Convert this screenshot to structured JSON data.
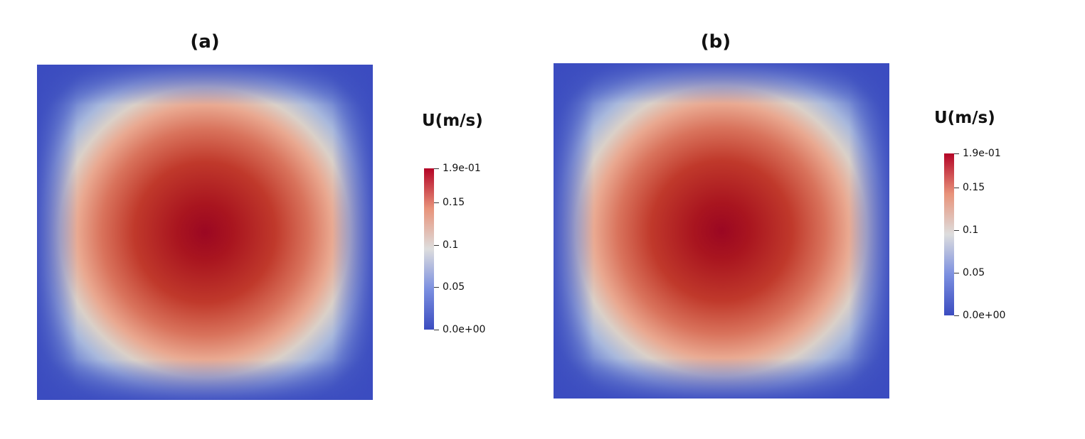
{
  "chart_data": [
    {
      "type": "heatmap",
      "title": "(a)",
      "colorbar": {
        "title": "U(m/s)",
        "range": [
          0.0,
          0.19
        ],
        "ticks": [
          {
            "value": 0.19,
            "label": "1.9e-01"
          },
          {
            "value": 0.15,
            "label": "0.15"
          },
          {
            "value": 0.1,
            "label": "0.1"
          },
          {
            "value": 0.05,
            "label": "0.05"
          },
          {
            "value": 0.0,
            "label": "0.0e+00"
          }
        ],
        "colormap": [
          "#3b4cc0",
          "#dddddd",
          "#b40426"
        ]
      },
      "field": {
        "min": 0.0,
        "max": 0.19,
        "peak_location": "center"
      }
    },
    {
      "type": "heatmap",
      "title": "(b)",
      "colorbar": {
        "title": "U(m/s)",
        "range": [
          0.0,
          0.19
        ],
        "ticks": [
          {
            "value": 0.19,
            "label": "1.9e-01"
          },
          {
            "value": 0.15,
            "label": "0.15"
          },
          {
            "value": 0.1,
            "label": "0.1"
          },
          {
            "value": 0.05,
            "label": "0.05"
          },
          {
            "value": 0.0,
            "label": "0.0e+00"
          }
        ],
        "colormap": [
          "#3b4cc0",
          "#dddddd",
          "#b40426"
        ]
      },
      "field": {
        "min": 0.0,
        "max": 0.19,
        "peak_location": "center"
      }
    }
  ]
}
